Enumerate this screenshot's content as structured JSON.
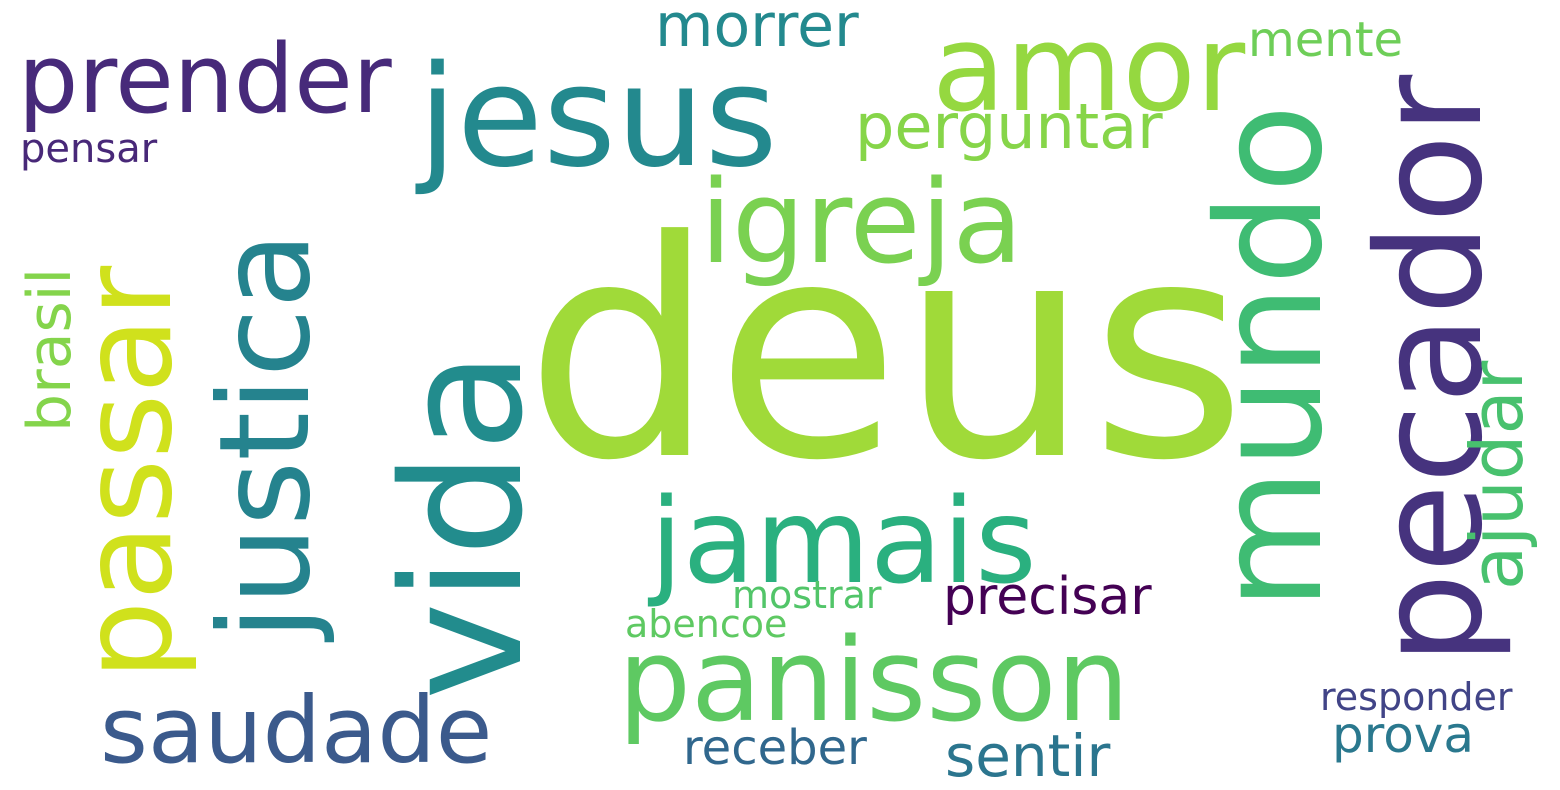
{
  "words": [
    {
      "text": "deus",
      "color": "#a0da39"
    },
    {
      "text": "vida",
      "color": "#228c8d"
    },
    {
      "text": "jesus",
      "color": "#23898e"
    },
    {
      "text": "amor",
      "color": "#95d840"
    },
    {
      "text": "prender",
      "color": "#472a7a"
    },
    {
      "text": "morrer",
      "color": "#23898e"
    },
    {
      "text": "mente",
      "color": "#6ece58"
    },
    {
      "text": "perguntar",
      "color": "#86d549"
    },
    {
      "text": "pensar",
      "color": "#482878"
    },
    {
      "text": "igreja",
      "color": "#7ad151"
    },
    {
      "text": "jamais",
      "color": "#2ab07f"
    },
    {
      "text": "panisson",
      "color": "#5ec962"
    },
    {
      "text": "saudade",
      "color": "#3b5a8c"
    },
    {
      "text": "precisar",
      "color": "#440154"
    },
    {
      "text": "mostrar",
      "color": "#52c569"
    },
    {
      "text": "abencoe",
      "color": "#5ec962"
    },
    {
      "text": "receber",
      "color": "#30678d"
    },
    {
      "text": "sentir",
      "color": "#2b758e"
    },
    {
      "text": "prova",
      "color": "#2a788e"
    },
    {
      "text": "responder",
      "color": "#414487"
    },
    {
      "text": "mundo",
      "color": "#3fbc73"
    },
    {
      "text": "pecador",
      "color": "#46337e"
    },
    {
      "text": "ajudar",
      "color": "#48c16e"
    },
    {
      "text": "justica",
      "color": "#25838e"
    },
    {
      "text": "passar",
      "color": "#d0e11c"
    },
    {
      "text": "brasil",
      "color": "#84d44b"
    }
  ]
}
